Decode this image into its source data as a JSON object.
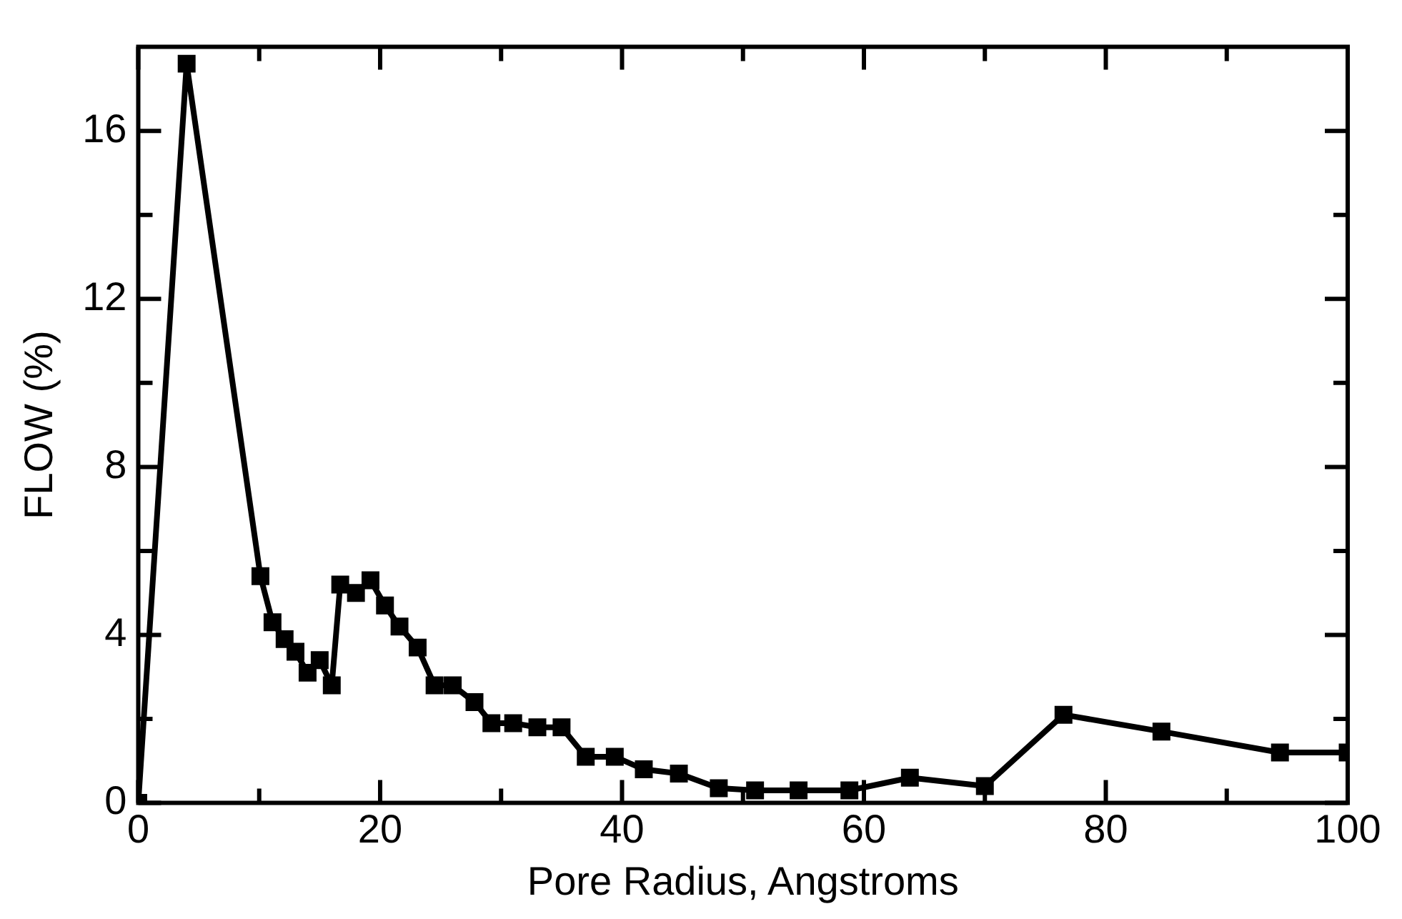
{
  "chart_data": {
    "type": "line",
    "xlabel": "Pore Radius, Angstroms",
    "ylabel": "FLOW (%)",
    "x": [
      0,
      4,
      10.1,
      11.1,
      12.1,
      13,
      14,
      15,
      16,
      16.7,
      18,
      19.2,
      20.4,
      21.6,
      23.1,
      24.5,
      26,
      27.8,
      29.2,
      31,
      33,
      35,
      37,
      39.4,
      41.8,
      44.7,
      48,
      51,
      54.6,
      58.8,
      63.8,
      70,
      76.5,
      84.6,
      94.4,
      100
    ],
    "series": [
      {
        "color": "#000000",
        "values": [
          0,
          17.6,
          5.4,
          4.3,
          3.9,
          3.6,
          3.1,
          3.4,
          2.8,
          5.2,
          5.0,
          5.3,
          4.7,
          4.2,
          3.7,
          2.8,
          2.8,
          2.4,
          1.9,
          1.9,
          1.8,
          1.8,
          1.1,
          1.1,
          0.8,
          0.7,
          0.35,
          0.3,
          0.3,
          0.3,
          0.6,
          0.4,
          2.1,
          1.7,
          1.2,
          1.2
        ]
      }
    ],
    "xlim": [
      0,
      100
    ],
    "ylim": [
      0,
      18
    ],
    "xticks": [
      0,
      {
        "value": 10,
        "label": null
      },
      20,
      {
        "value": 30,
        "label": null
      },
      40,
      {
        "value": 50,
        "label": null
      },
      60,
      {
        "value": 70,
        "label": null
      },
      80,
      {
        "value": 90,
        "label": null
      },
      100
    ],
    "yticks": [
      0,
      {
        "value": 2,
        "label": null
      },
      4,
      {
        "value": 6,
        "label": null
      },
      8,
      {
        "value": 10,
        "label": null
      },
      12,
      {
        "value": 14,
        "label": null
      },
      16
    ],
    "grid": false,
    "legend": false,
    "marker": "square",
    "line_style": "solid"
  }
}
